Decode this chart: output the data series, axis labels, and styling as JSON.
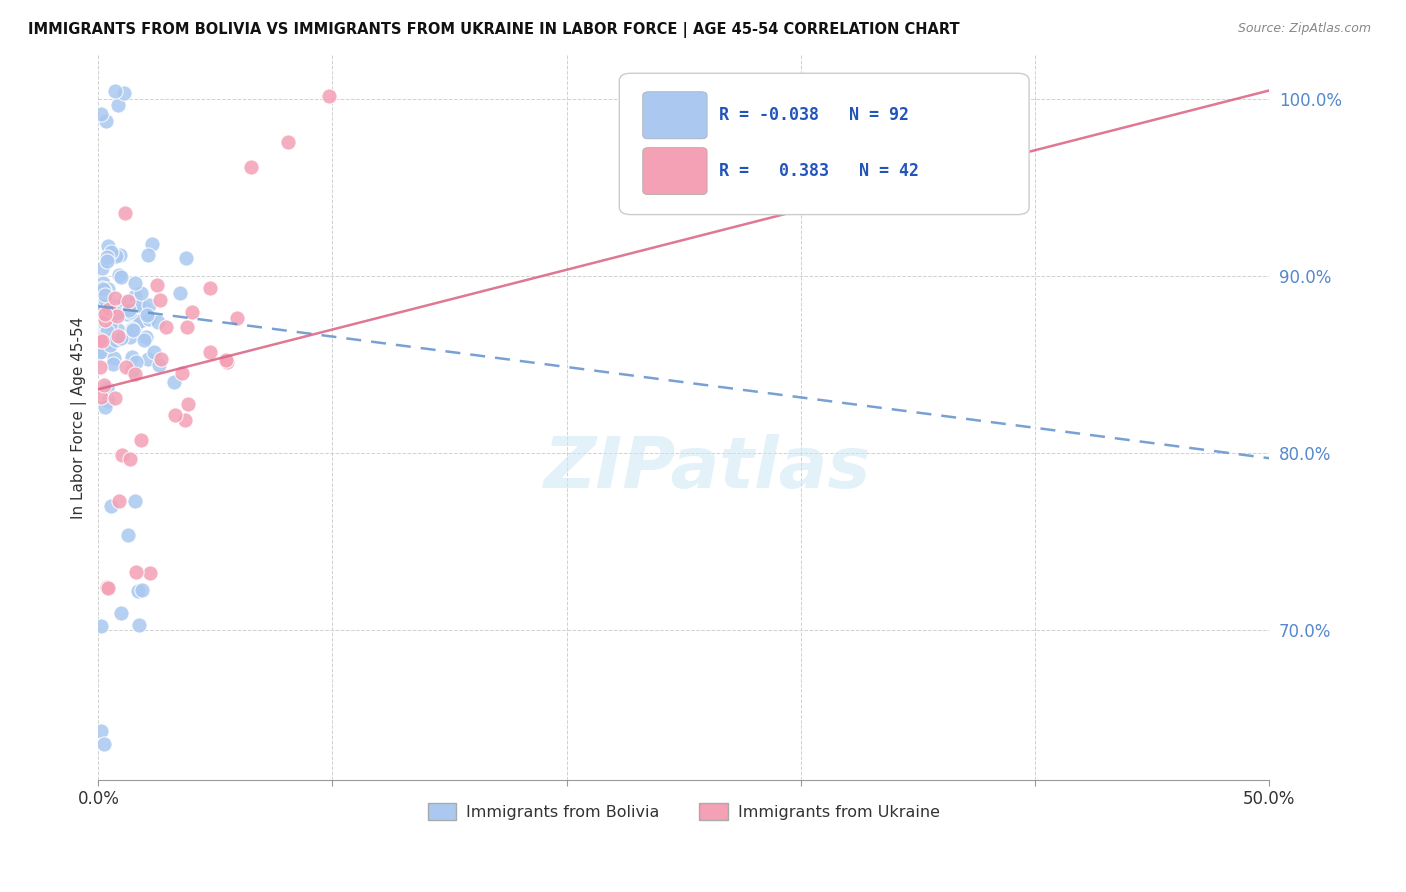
{
  "title": "IMMIGRANTS FROM BOLIVIA VS IMMIGRANTS FROM UKRAINE IN LABOR FORCE | AGE 45-54 CORRELATION CHART",
  "source": "Source: ZipAtlas.com",
  "ylabel": "In Labor Force | Age 45-54",
  "x_min": 0.0,
  "x_max": 0.5,
  "y_min": 0.615,
  "y_max": 1.025,
  "x_ticks": [
    0.0,
    0.1,
    0.2,
    0.3,
    0.4,
    0.5
  ],
  "x_tick_labels": [
    "0.0%",
    "",
    "",
    "",
    "",
    "50.0%"
  ],
  "y_ticks": [
    0.7,
    0.8,
    0.9,
    1.0
  ],
  "y_tick_labels": [
    "70.0%",
    "80.0%",
    "90.0%",
    "100.0%"
  ],
  "bolivia_color": "#aac8f0",
  "ukraine_color": "#f4a0b5",
  "bolivia_trend_color": "#6090cc",
  "ukraine_trend_color": "#d96080",
  "bolivia_R": -0.038,
  "bolivia_N": 92,
  "ukraine_R": 0.383,
  "ukraine_N": 42,
  "watermark_text": "ZIPatlas",
  "bolivia_trend_x": [
    0.0,
    0.5
  ],
  "bolivia_trend_y": [
    0.883,
    0.797
  ],
  "ukraine_trend_x": [
    0.0,
    0.5
  ],
  "ukraine_trend_y": [
    0.836,
    1.005
  ]
}
